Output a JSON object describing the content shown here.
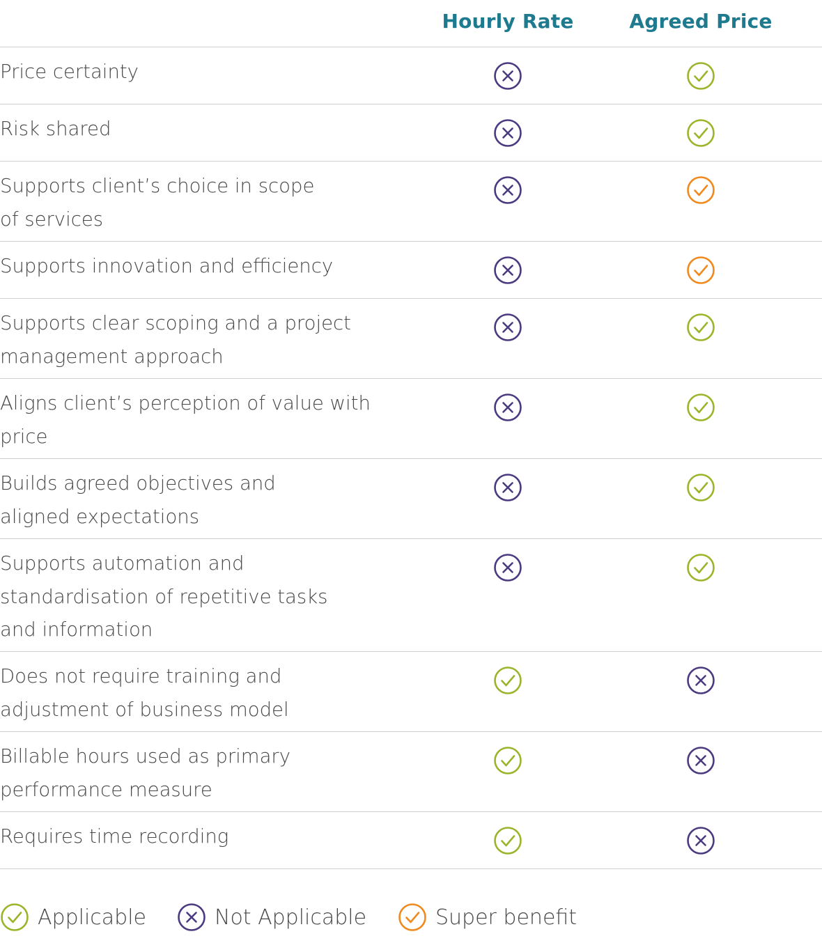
{
  "columns": {
    "hourly": "Hourly Rate",
    "agreed": "Agreed Price"
  },
  "colors": {
    "applicable": "#9ab52a",
    "not_applicable": "#4b3a80",
    "super_benefit": "#f08a1f",
    "header": "#1e7a8f"
  },
  "rows": [
    {
      "label": "Price certainty",
      "hourly": "not_applicable",
      "agreed": "applicable"
    },
    {
      "label": "Risk shared",
      "hourly": "not_applicable",
      "agreed": "applicable"
    },
    {
      "label": "Supports client’s choice in scope\nof services",
      "hourly": "not_applicable",
      "agreed": "super_benefit"
    },
    {
      "label": "Supports innovation and efficiency",
      "hourly": "not_applicable",
      "agreed": "super_benefit"
    },
    {
      "label": "Supports clear scoping and a project\nmanagement approach",
      "hourly": "not_applicable",
      "agreed": "applicable"
    },
    {
      "label": "Aligns client’s perception of value with\nprice",
      "hourly": "not_applicable",
      "agreed": "applicable"
    },
    {
      "label": "Builds agreed objectives and\naligned expectations",
      "hourly": "not_applicable",
      "agreed": "applicable"
    },
    {
      "label": "Supports automation and\nstandardisation of repetitive tasks\nand information",
      "hourly": "not_applicable",
      "agreed": "applicable"
    },
    {
      "label": "Does not require training and\nadjustment of business model",
      "hourly": "applicable",
      "agreed": "not_applicable"
    },
    {
      "label": "Billable hours used as primary\nperformance measure",
      "hourly": "applicable",
      "agreed": "not_applicable"
    },
    {
      "label": "Requires time recording",
      "hourly": "applicable",
      "agreed": "not_applicable"
    }
  ],
  "legend": {
    "applicable": "Applicable",
    "not_applicable": "Not Applicable",
    "super_benefit": "Super benefit"
  }
}
